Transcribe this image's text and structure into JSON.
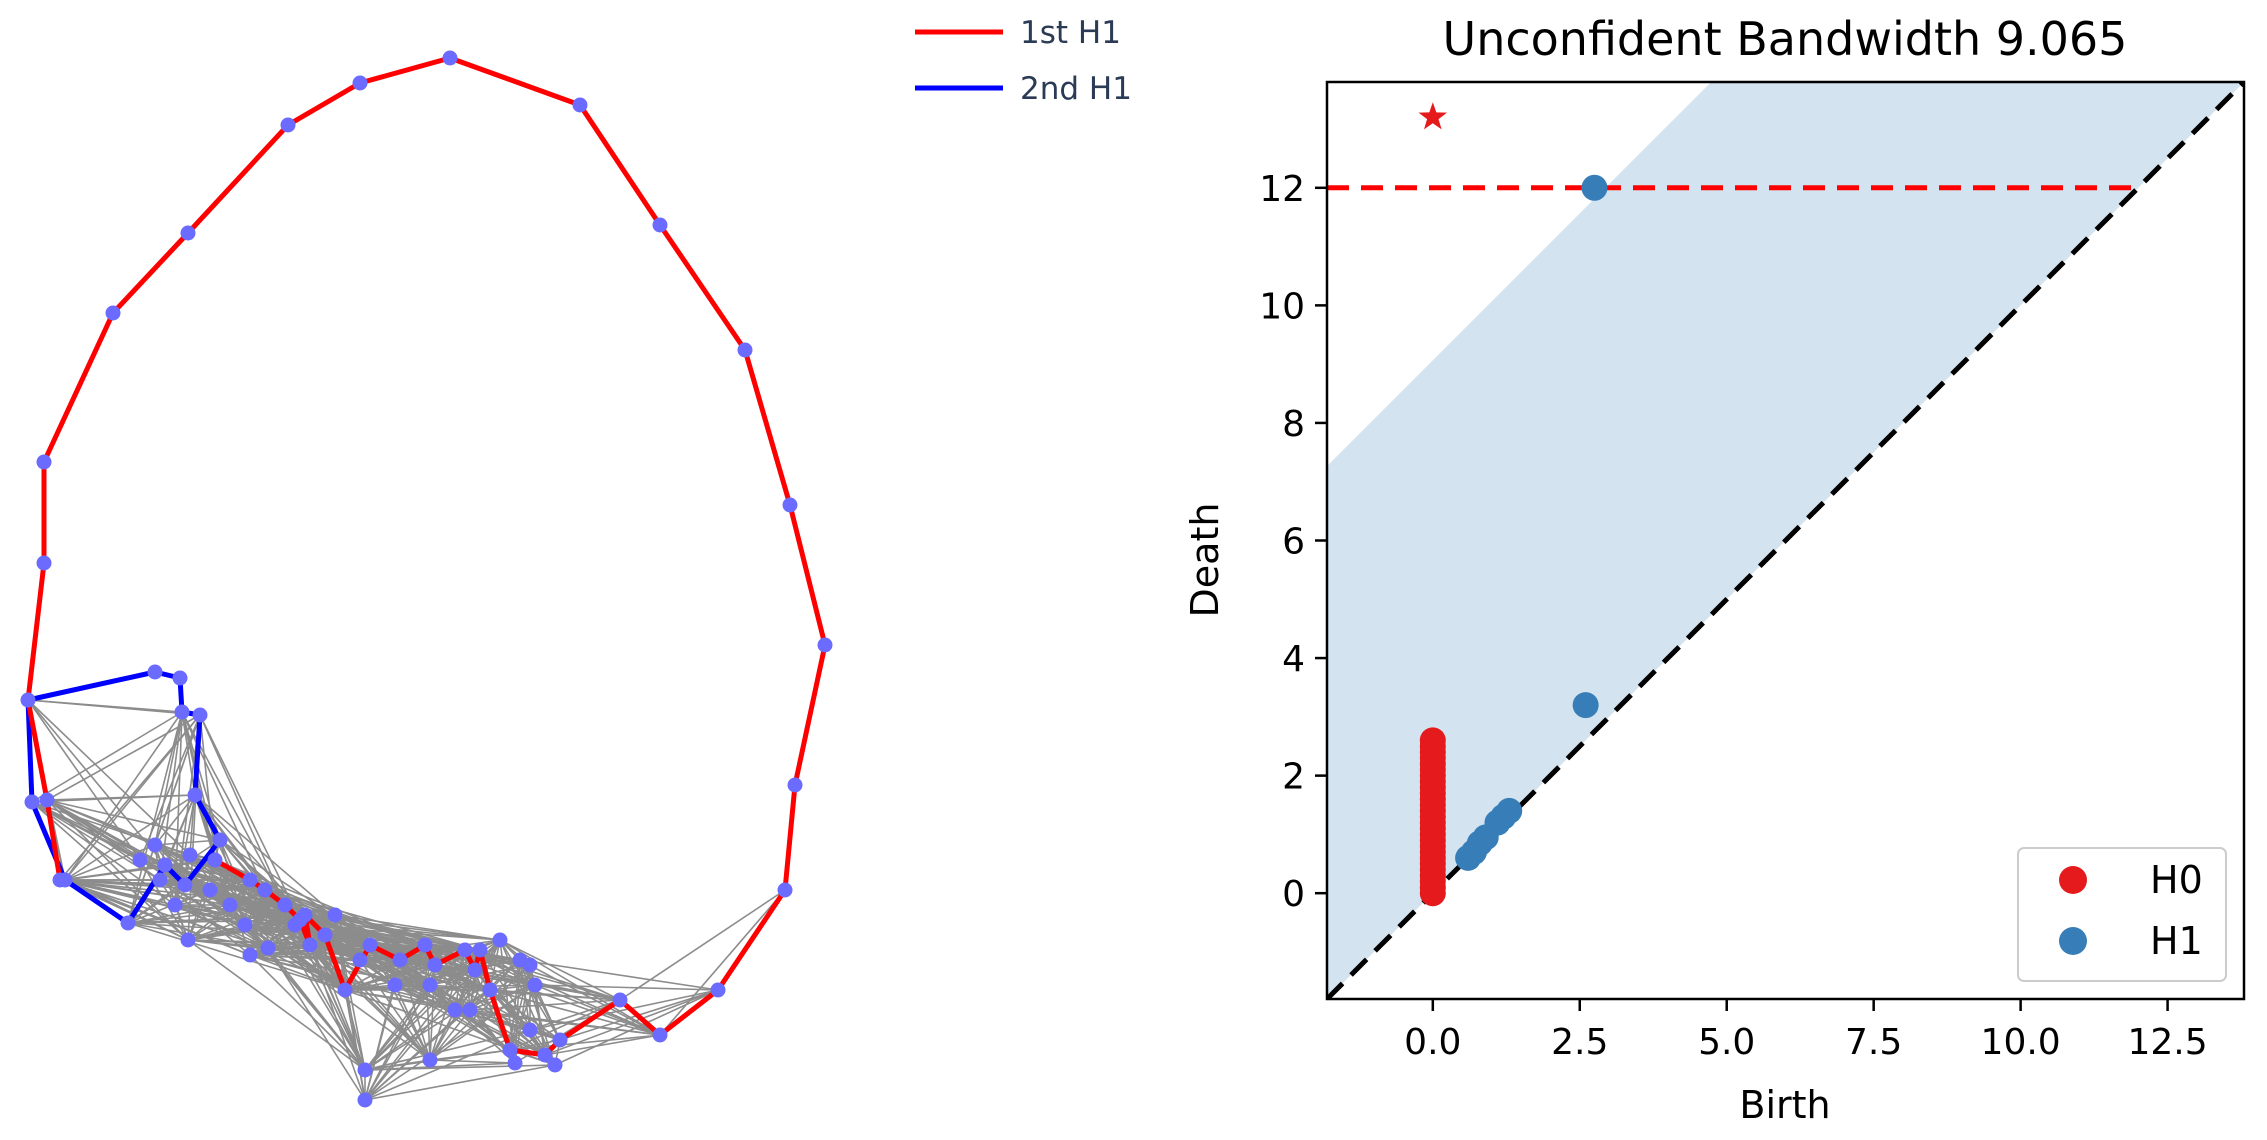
{
  "chart_data": [
    {
      "type": "network",
      "legend": {
        "placement": "top-right",
        "entries": [
          "1st H1",
          "2nd H1"
        ]
      },
      "colors": {
        "node": "#6b6bff",
        "edge": "#8c8c8c",
        "first_h1": "#ff0000",
        "second_h1": "#0000ff",
        "legend_text": "#2b3a55"
      },
      "series": [
        {
          "name": "1st H1",
          "points": [
            [
              215,
              860
            ],
            [
              250,
              880
            ],
            [
              265,
              890
            ],
            [
              285,
              905
            ],
            [
              300,
              920
            ],
            [
              310,
              945
            ],
            [
              305,
              915
            ],
            [
              325,
              935
            ],
            [
              345,
              990
            ],
            [
              370,
              945
            ],
            [
              400,
              960
            ],
            [
              425,
              945
            ],
            [
              435,
              965
            ],
            [
              465,
              950
            ],
            [
              475,
              970
            ],
            [
              480,
              950
            ],
            [
              490,
              990
            ],
            [
              510,
              1050
            ],
            [
              545,
              1055
            ],
            [
              560,
              1040
            ],
            [
              620,
              1000
            ],
            [
              660,
              1035
            ],
            [
              718,
              990
            ],
            [
              785,
              890
            ],
            [
              795,
              785
            ],
            [
              825,
              645
            ],
            [
              790,
              505
            ],
            [
              745,
              350
            ],
            [
              660,
              225
            ],
            [
              580,
              105
            ],
            [
              450,
              58
            ],
            [
              360,
              83
            ],
            [
              288,
              125
            ],
            [
              188,
              233
            ],
            [
              113,
              313
            ],
            [
              44,
              462
            ],
            [
              44,
              563
            ],
            [
              28,
              700
            ],
            [
              47,
              800
            ],
            [
              60,
              880
            ]
          ]
        },
        {
          "name": "2nd H1",
          "points": [
            [
              28,
              700
            ],
            [
              155,
              672
            ],
            [
              180,
              678
            ],
            [
              182,
              712
            ],
            [
              200,
              715
            ],
            [
              195,
              795
            ],
            [
              220,
              840
            ],
            [
              185,
              885
            ],
            [
              165,
              865
            ],
            [
              128,
              923
            ],
            [
              65,
              880
            ],
            [
              32,
              802
            ],
            [
              28,
              700
            ]
          ]
        }
      ]
    },
    {
      "type": "scatter",
      "title": "Unconfident Bandwidth 9.065",
      "xlabel": "Birth",
      "ylabel": "Death",
      "xlim": [
        -1.8,
        13.8
      ],
      "ylim": [
        -1.8,
        13.8
      ],
      "xticks": [
        0.0,
        2.5,
        5.0,
        7.5,
        10.0,
        12.5
      ],
      "xticklabels": [
        "0.0",
        "2.5",
        "5.0",
        "7.5",
        "10.0",
        "12.5"
      ],
      "yticks": [
        0,
        2,
        4,
        6,
        8,
        10,
        12
      ],
      "yticklabels": [
        "0",
        "2",
        "4",
        "6",
        "8",
        "10",
        "12"
      ],
      "bandwidth": 9.065,
      "infinity_level": 12.0,
      "legend": {
        "placement": "lower-right",
        "entries": [
          "H0",
          "H1"
        ]
      },
      "series": [
        {
          "name": "H0",
          "color": "#e41a1c",
          "points": [
            [
              0,
              0
            ],
            [
              0,
              0.1
            ],
            [
              0,
              0.2
            ],
            [
              0,
              0.3
            ],
            [
              0,
              0.4
            ],
            [
              0,
              0.5
            ],
            [
              0,
              0.6
            ],
            [
              0,
              0.7
            ],
            [
              0,
              0.8
            ],
            [
              0,
              0.9
            ],
            [
              0,
              1.0
            ],
            [
              0,
              1.1
            ],
            [
              0,
              1.2
            ],
            [
              0,
              1.3
            ],
            [
              0,
              1.4
            ],
            [
              0,
              1.5
            ],
            [
              0,
              1.6
            ],
            [
              0,
              1.7
            ],
            [
              0,
              1.8
            ],
            [
              0,
              1.9
            ],
            [
              0,
              2.0
            ],
            [
              0,
              2.1
            ],
            [
              0,
              2.2
            ],
            [
              0,
              2.3
            ],
            [
              0,
              2.4
            ],
            [
              0,
              2.5
            ],
            [
              0,
              2.6
            ]
          ],
          "infinite_points": [
            [
              0,
              13.2
            ]
          ]
        },
        {
          "name": "H1",
          "color": "#377eb8",
          "points": [
            [
              0.6,
              0.6
            ],
            [
              0.7,
              0.7
            ],
            [
              0.8,
              0.85
            ],
            [
              0.9,
              0.95
            ],
            [
              1.1,
              1.2
            ],
            [
              1.2,
              1.3
            ],
            [
              1.3,
              1.4
            ],
            [
              2.6,
              3.2
            ],
            [
              2.75,
              12.0
            ]
          ]
        }
      ]
    }
  ]
}
